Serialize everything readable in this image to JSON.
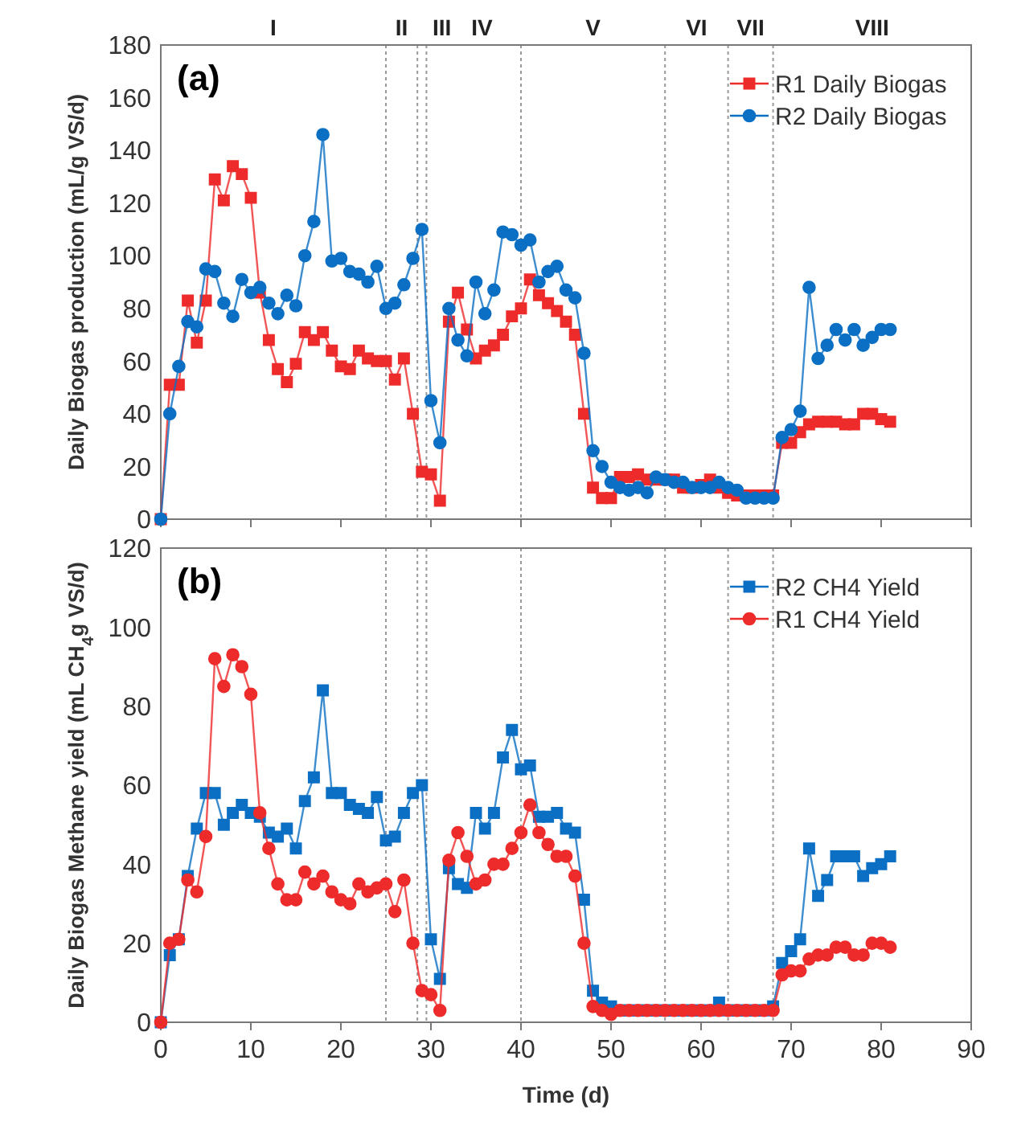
{
  "chart_data": [
    {
      "type": "line",
      "ylabel": "Daily Biogas production (mL/g VS/d)",
      "x": [
        0,
        1,
        2,
        3,
        4,
        5,
        6,
        7,
        8,
        9,
        10,
        11,
        12,
        13,
        14,
        15,
        16,
        17,
        18,
        19,
        20,
        21,
        22,
        23,
        24,
        25,
        26,
        27,
        28,
        29,
        30,
        31,
        32,
        33,
        34,
        35,
        36,
        37,
        38,
        39,
        40,
        41,
        42,
        43,
        44,
        45,
        46,
        47,
        48,
        49,
        50,
        51,
        52,
        53,
        54,
        55,
        56,
        57,
        58,
        59,
        60,
        61,
        62,
        63,
        64,
        65,
        66,
        67,
        68,
        69,
        70,
        71,
        72,
        73,
        74,
        75,
        76,
        77,
        78,
        79,
        80,
        81
      ],
      "xlim": [
        0,
        90
      ],
      "xticks": [
        0,
        10,
        20,
        30,
        40,
        50,
        60,
        70,
        80,
        90
      ],
      "ylim": [
        0,
        180
      ],
      "yticks": [
        0,
        20,
        40,
        60,
        80,
        100,
        120,
        140,
        160,
        180
      ],
      "tick_labels": "y",
      "legend": "top right",
      "annotations": [
        "(a)",
        "I",
        "II",
        "III",
        "IV",
        "V",
        "VI",
        "VII",
        "VIII"
      ],
      "ref_lines": [
        {
          "axis": "x",
          "value": 25,
          "color": "#999999",
          "line_style": "dotted"
        },
        {
          "axis": "x",
          "value": 28.5,
          "color": "#999999",
          "line_style": "dotted"
        },
        {
          "axis": "x",
          "value": 29.5,
          "color": "#999999",
          "line_style": "dotted"
        },
        {
          "axis": "x",
          "value": 40,
          "color": "#999999",
          "line_style": "dotted"
        },
        {
          "axis": "x",
          "value": 56,
          "color": "#999999",
          "line_style": "dotted"
        },
        {
          "axis": "x",
          "value": 63,
          "color": "#999999",
          "line_style": "dotted"
        },
        {
          "axis": "x",
          "value": 68,
          "color": "#999999",
          "line_style": "dotted"
        }
      ],
      "series": [
        {
          "name": "R1 Daily Biogas",
          "color": "#ee2b2b",
          "marker": "square",
          "values": [
            0,
            51,
            51,
            83,
            67,
            83,
            129,
            121,
            134,
            131,
            122,
            86,
            68,
            57,
            52,
            59,
            71,
            68,
            71,
            64,
            58,
            57,
            64,
            61,
            60,
            60,
            53,
            61,
            40,
            18,
            17,
            7,
            75,
            86,
            72,
            61,
            64,
            66,
            70,
            77,
            80,
            91,
            85,
            82,
            79,
            75,
            70,
            40,
            12,
            8,
            8,
            16,
            16,
            17,
            15,
            15,
            15,
            15,
            12,
            12,
            13,
            15,
            12,
            10,
            9,
            9,
            9,
            9,
            9,
            29,
            29,
            33,
            36,
            37,
            37,
            37,
            36,
            36,
            40,
            40,
            38,
            37
          ]
        },
        {
          "name": "R2 Daily Biogas",
          "color": "#0b6fc4",
          "marker": "circle",
          "values": [
            0,
            40,
            58,
            75,
            73,
            95,
            94,
            82,
            77,
            91,
            86,
            88,
            82,
            78,
            85,
            81,
            100,
            113,
            146,
            98,
            99,
            94,
            93,
            90,
            96,
            80,
            82,
            89,
            99,
            110,
            45,
            29,
            80,
            68,
            62,
            90,
            78,
            87,
            109,
            108,
            104,
            106,
            90,
            94,
            96,
            87,
            84,
            63,
            26,
            20,
            14,
            12,
            11,
            12,
            10,
            16,
            15,
            14,
            14,
            12,
            12,
            12,
            14,
            12,
            11,
            8,
            8,
            8,
            8,
            31,
            34,
            41,
            88,
            61,
            66,
            72,
            68,
            72,
            66,
            69,
            72,
            72
          ]
        }
      ]
    },
    {
      "type": "line",
      "xlabel": "Time (d)",
      "ylabel": "Daily Biogas Methane yield (mL CH$_{4}$g VS/d)",
      "x": [
        0,
        1,
        2,
        3,
        4,
        5,
        6,
        7,
        8,
        9,
        10,
        11,
        12,
        13,
        14,
        15,
        16,
        17,
        18,
        19,
        20,
        21,
        22,
        23,
        24,
        25,
        26,
        27,
        28,
        29,
        30,
        31,
        32,
        33,
        34,
        35,
        36,
        37,
        38,
        39,
        40,
        41,
        42,
        43,
        44,
        45,
        46,
        47,
        48,
        49,
        50,
        51,
        52,
        53,
        54,
        55,
        56,
        57,
        58,
        59,
        60,
        61,
        62,
        63,
        64,
        65,
        66,
        67,
        68,
        69,
        70,
        71,
        72,
        73,
        74,
        75,
        76,
        77,
        78,
        79,
        80,
        81
      ],
      "xlim": [
        0,
        90
      ],
      "xticks": [
        0,
        10,
        20,
        30,
        40,
        50,
        60,
        70,
        80,
        90
      ],
      "ylim": [
        0,
        120
      ],
      "yticks": [
        0,
        20,
        40,
        60,
        80,
        100,
        120
      ],
      "legend": "top right",
      "annotations": [
        "(b)"
      ],
      "ref_lines": [
        {
          "axis": "x",
          "value": 25,
          "color": "#999999",
          "line_style": "dotted"
        },
        {
          "axis": "x",
          "value": 28.5,
          "color": "#999999",
          "line_style": "dotted"
        },
        {
          "axis": "x",
          "value": 29.5,
          "color": "#999999",
          "line_style": "dotted"
        },
        {
          "axis": "x",
          "value": 40,
          "color": "#999999",
          "line_style": "dotted"
        },
        {
          "axis": "x",
          "value": 56,
          "color": "#999999",
          "line_style": "dotted"
        },
        {
          "axis": "x",
          "value": 63,
          "color": "#999999",
          "line_style": "dotted"
        },
        {
          "axis": "x",
          "value": 68,
          "color": "#999999",
          "line_style": "dotted"
        }
      ],
      "series": [
        {
          "name": "R2 CH4 Yield",
          "color": "#0b6fc4",
          "marker": "square",
          "values": [
            0,
            17,
            21,
            37,
            49,
            58,
            58,
            50,
            53,
            55,
            53,
            52,
            48,
            47,
            49,
            44,
            56,
            62,
            84,
            58,
            58,
            55,
            54,
            53,
            57,
            46,
            47,
            53,
            58,
            60,
            21,
            11,
            39,
            35,
            34,
            53,
            49,
            53,
            67,
            74,
            64,
            65,
            52,
            52,
            53,
            49,
            48,
            31,
            8,
            5,
            4,
            3,
            3,
            3,
            3,
            3,
            3,
            3,
            3,
            3,
            3,
            3,
            5,
            3,
            3,
            3,
            3,
            3,
            4,
            15,
            18,
            21,
            44,
            32,
            36,
            42,
            42,
            42,
            37,
            39,
            40,
            42
          ]
        },
        {
          "name": "R1 CH4 Yield",
          "color": "#ee2b2b",
          "marker": "circle",
          "values": [
            0,
            20,
            21,
            36,
            33,
            47,
            92,
            85,
            93,
            90,
            83,
            53,
            44,
            35,
            31,
            31,
            38,
            35,
            37,
            33,
            31,
            30,
            35,
            33,
            34,
            35,
            28,
            36,
            20,
            8,
            7,
            3,
            41,
            48,
            42,
            35,
            36,
            40,
            40,
            44,
            48,
            55,
            48,
            45,
            42,
            42,
            37,
            20,
            4,
            3,
            2,
            3,
            3,
            3,
            3,
            3,
            3,
            3,
            3,
            3,
            3,
            3,
            3,
            3,
            3,
            3,
            3,
            3,
            3,
            12,
            13,
            13,
            16,
            17,
            17,
            19,
            19,
            17,
            17,
            20,
            20,
            19
          ]
        }
      ]
    }
  ]
}
